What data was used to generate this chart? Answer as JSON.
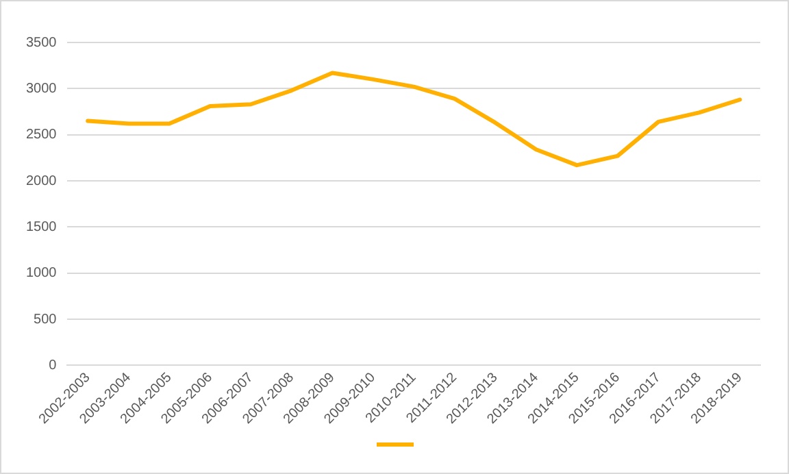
{
  "chart_data": {
    "type": "line",
    "categories": [
      "2002-2003",
      "2003-2004",
      "2004-2005",
      "2005-2006",
      "2006-2007",
      "2007-2008",
      "2008-2009",
      "2009-2010",
      "2010-2011",
      "2011-2012",
      "2012-2013",
      "2013-2014",
      "2014-2015",
      "2015-2016",
      "2016-2017",
      "2017-2018",
      "2018-2019"
    ],
    "series": [
      {
        "color": "#ffb000",
        "values": [
          2650,
          2620,
          2620,
          2810,
          2830,
          2980,
          3170,
          3100,
          3020,
          2890,
          2630,
          2340,
          2170,
          2270,
          2640,
          2740,
          2880
        ]
      }
    ],
    "ylim": [
      0,
      3500
    ],
    "yticks": [
      0,
      500,
      1000,
      1500,
      2000,
      2500,
      3000,
      3500
    ],
    "grid": "y",
    "marker": "none",
    "line_style": "solid"
  }
}
